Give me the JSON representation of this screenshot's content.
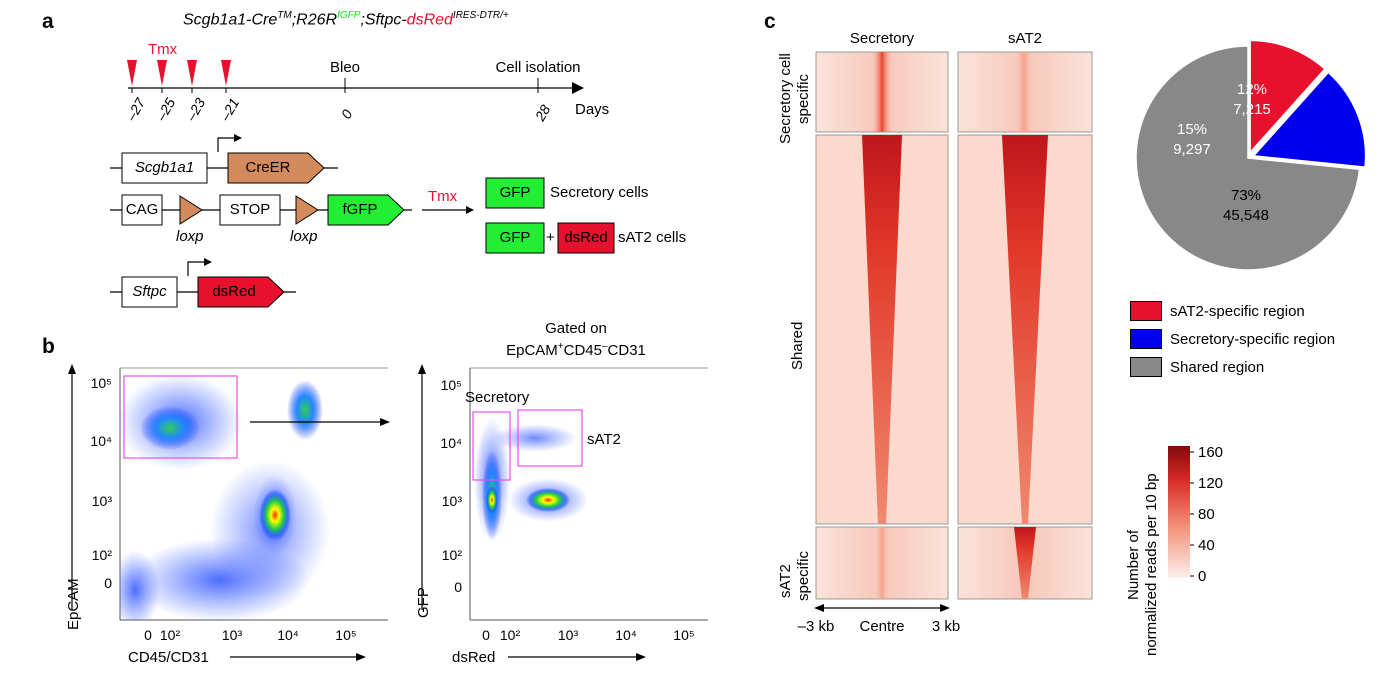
{
  "panel_a": {
    "label": "a",
    "genotype": {
      "g1": "Scgb1a1-Cre",
      "g1_sup": "TM",
      "g2": ";R26R",
      "g2_sup": "fGFP",
      "g3": ";Sftpc-",
      "g4": "dsRed",
      "g4_sup": "IRES-DTR/+"
    },
    "tmx_label": "Tmx",
    "bleo_label": "Bleo",
    "isolation_label": "Cell isolation",
    "days_label": "Days",
    "ticks": [
      "–27",
      "–25",
      "–23",
      "–21",
      "0",
      "28"
    ],
    "constructs": {
      "scgb1a1": "Scgb1a1",
      "creer": "CreER",
      "cag": "CAG",
      "stop": "STOP",
      "fgfp": "fGFP",
      "loxp1": "loxp",
      "loxp2": "loxp",
      "sftpc": "Sftpc",
      "dsred": "dsRed",
      "tmx_arrow": "Tmx",
      "gfp1": "GFP",
      "secretory_cells": "Secretory cells",
      "gfp2": "GFP",
      "plus": "+",
      "dsred2": "dsRed",
      "sat2_cells": "sAT2 cells"
    }
  },
  "panel_b": {
    "label": "b",
    "gate_title_1": "Gated on",
    "gate_title_2a": "EpCAM",
    "gate_title_2b": "+",
    "gate_title_2c": "CD45",
    "gate_title_2d": "–",
    "gate_title_2e": "CD31",
    "plot1": {
      "ylabel": "EpCAM",
      "xlabel": "CD45/CD31",
      "yticks": [
        "10⁵",
        "10⁴",
        "10³",
        "10²",
        "0"
      ],
      "xticks": [
        "0",
        "10²",
        "10³",
        "10⁴",
        "10⁵"
      ]
    },
    "plot2": {
      "ylabel": "GFP",
      "xlabel": "dsRed",
      "yticks": [
        "10⁵",
        "10⁴",
        "10³",
        "10²",
        "0"
      ],
      "xticks": [
        "0",
        "10²",
        "10³",
        "10⁴",
        "10⁵"
      ],
      "gate_secretory": "Secretory",
      "gate_sat2": "sAT2"
    }
  },
  "panel_c": {
    "label": "c",
    "col1": "Secretory",
    "col2": "sAT2",
    "row1": [
      "Secretory cell",
      "specific"
    ],
    "row2": "Shared",
    "row3": [
      "sAT2",
      "specific"
    ],
    "x_left": "–3 kb",
    "x_mid": "Centre",
    "x_right": "3 kb",
    "colorbar_ticks": [
      "160",
      "120",
      "80",
      "40",
      "0"
    ],
    "colorbar_title": [
      "Number of",
      "normalized reads per 10 bp"
    ],
    "heat_colors": {
      "low": "#fbe3da",
      "mid": "#ef4c3c",
      "high": "#b01217"
    }
  },
  "chart_data": {
    "type": "pie",
    "categories": [
      "sAT2-specific region",
      "Secretory-specific region",
      "Shared region"
    ],
    "values": [
      7215,
      9297,
      45548
    ],
    "percent_labels": [
      "12%",
      "15%",
      "73%"
    ],
    "count_labels": [
      "7,215",
      "9,297",
      "45,548"
    ],
    "colors": [
      "#e8112d",
      "#0000ee",
      "#888888"
    ],
    "legend_position": "bottom"
  }
}
